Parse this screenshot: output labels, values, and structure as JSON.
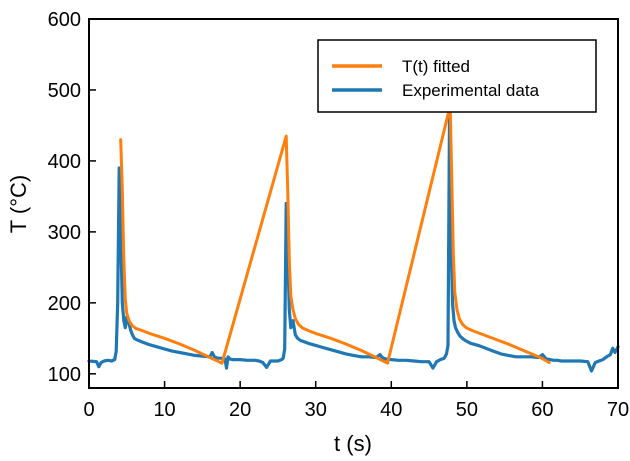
{
  "chart_data": {
    "type": "line",
    "title": "",
    "xlabel": "t (s)",
    "ylabel": "T (°C)",
    "xlim": [
      0,
      70
    ],
    "ylim": [
      80,
      600
    ],
    "x_ticks": [
      "0",
      "10",
      "20",
      "30",
      "40",
      "50",
      "60",
      "70"
    ],
    "y_ticks": [
      "100",
      "200",
      "300",
      "400",
      "500",
      "600"
    ],
    "grid": false,
    "legend_position": "top-right",
    "series": [
      {
        "name": "T(t) fitted",
        "color": "#ff7f0e",
        "x": [
          4.2,
          4.4,
          4.6,
          4.8,
          5.0,
          5.3,
          5.7,
          6.2,
          7.0,
          8.0,
          10.0,
          12.0,
          14.0,
          16.0,
          17.6,
          26.1,
          26.3,
          26.5,
          26.7,
          27.0,
          27.3,
          27.7,
          28.2,
          29.0,
          30.0,
          32.0,
          34.0,
          36.0,
          38.0,
          39.5,
          47.8,
          48.0,
          48.2,
          48.4,
          48.7,
          49.0,
          49.4,
          49.9,
          50.7,
          51.7,
          53.7,
          55.7,
          57.7,
          59.7,
          60.9
        ],
        "y": [
          430,
          360,
          260,
          205,
          185,
          175,
          168,
          164,
          161,
          157,
          150,
          142,
          133,
          123,
          115,
          435,
          355,
          260,
          210,
          190,
          178,
          170,
          165,
          161,
          157,
          150,
          142,
          133,
          123,
          115,
          478,
          380,
          270,
          215,
          190,
          178,
          170,
          165,
          161,
          157,
          149,
          141,
          132,
          123,
          116
        ]
      },
      {
        "name": "Experimental data",
        "color": "#1f77b4",
        "x": [
          0,
          1.0,
          1.3,
          1.6,
          2.0,
          2.5,
          3.0,
          3.4,
          3.6,
          3.8,
          4.0,
          4.2,
          4.4,
          4.6,
          4.8,
          5.0,
          5.3,
          5.5,
          5.7,
          6.0,
          6.3,
          7.0,
          8.0,
          9.0,
          10.0,
          11.0,
          12.0,
          13.0,
          14.0,
          15.0,
          16.0,
          16.3,
          16.6,
          17.0,
          17.5,
          18.0,
          18.2,
          18.4,
          18.6,
          19.0,
          20.0,
          21.0,
          22.0,
          22.5,
          23.0,
          23.5,
          24.0,
          25.0,
          25.5,
          25.7,
          25.9,
          26.1,
          26.3,
          26.5,
          26.7,
          27.0,
          27.3,
          27.6,
          28.0,
          29.0,
          30.0,
          31.0,
          32.0,
          33.0,
          34.0,
          35.0,
          36.0,
          37.0,
          38.0,
          38.5,
          38.8,
          39.2,
          40.0,
          41.0,
          42.0,
          43.0,
          44.0,
          45.0,
          45.5,
          46.0,
          46.5,
          47.0,
          47.3,
          47.5,
          47.7,
          47.9,
          48.1,
          48.3,
          48.5,
          48.8,
          49.1,
          49.4,
          49.8,
          50.5,
          51.5,
          52.5,
          53.5,
          54.5,
          55.5,
          56.5,
          57.5,
          58.5,
          59.5,
          60.0,
          60.5,
          61.0,
          61.5,
          62.0,
          62.5,
          63.0,
          64.0,
          65.0,
          66.0,
          66.5,
          67.0,
          67.5,
          68.0,
          68.5,
          69.0,
          69.3,
          69.6,
          70.0
        ],
        "y": [
          118,
          117,
          110,
          116,
          118,
          119,
          118,
          120,
          132,
          200,
          390,
          300,
          200,
          175,
          165,
          180,
          170,
          162,
          156,
          150,
          148,
          145,
          141,
          138,
          135,
          132,
          130,
          128,
          126,
          125,
          124,
          130,
          124,
          122,
          122,
          121,
          108,
          124,
          121,
          120,
          120,
          119,
          119,
          118,
          116,
          109,
          118,
          118,
          120,
          122,
          135,
          340,
          270,
          190,
          165,
          175,
          155,
          150,
          147,
          143,
          140,
          137,
          134,
          131,
          128,
          126,
          124,
          124,
          123,
          127,
          123,
          121,
          120,
          119,
          119,
          118,
          117,
          117,
          108,
          117,
          120,
          122,
          128,
          140,
          460,
          300,
          200,
          175,
          165,
          158,
          153,
          150,
          147,
          143,
          140,
          136,
          132,
          128,
          126,
          124,
          124,
          124,
          123,
          127,
          121,
          120,
          119,
          119,
          118,
          118,
          118,
          118,
          117,
          104,
          116,
          118,
          120,
          124,
          127,
          136,
          130,
          138
        ]
      }
    ]
  }
}
